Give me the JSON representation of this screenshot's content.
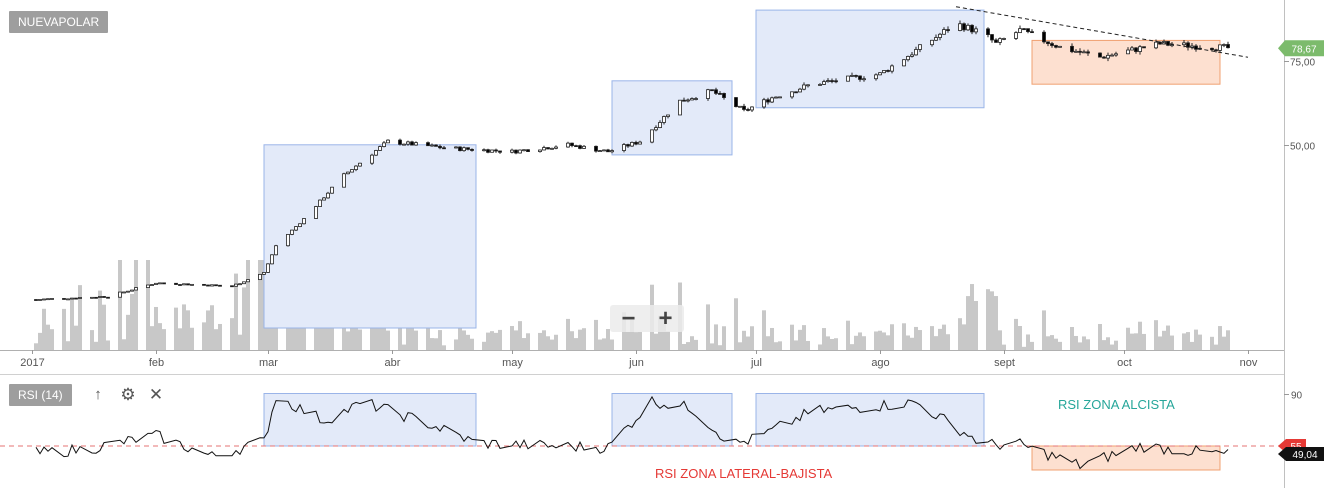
{
  "symbol_label": "NUEVAPOLAR",
  "rsi_label": "RSI (14)",
  "icons": {
    "arrow": "up-arrow-icon",
    "settings": "gear-icon",
    "close": "close-icon",
    "zoom_out": "minus-icon",
    "zoom_in": "plus-icon"
  },
  "zoom": {
    "out_glyph": "−",
    "in_glyph": "+"
  },
  "annotations": {
    "bull_zone": "RSI ZONA ALCISTA",
    "lateral_zone": "RSI ZONA LATERAL-BAJISTA",
    "bull_color": "#26a69a",
    "lateral_color": "#e53935"
  },
  "colors": {
    "up_candle": "#ffffff",
    "down_candle": "#000000",
    "volume": "#c8c8c8",
    "box_blue_fill": "#e3eaf9",
    "box_blue_stroke": "#9ab4e8",
    "box_orange_fill": "#fde0d0",
    "box_orange_stroke": "#f0a070",
    "last_price_badge": "#7cbb6c",
    "rsi_badge": "#e53935"
  },
  "chart_data": [
    {
      "type": "candlestick",
      "title": "NUEVAPOLAR",
      "x_range": [
        "2017-01-01",
        "2017-11-06"
      ],
      "x_tick_labels": [
        "2017",
        "feb",
        "mar",
        "abr",
        "may",
        "jun",
        "jul",
        "ago",
        "sept",
        "oct",
        "nov"
      ],
      "y_tick_labels": [
        "75,00",
        "50,00"
      ],
      "y_range": [
        0,
        90
      ],
      "last_price": "78,67",
      "last_price_value": 78.67,
      "price_path": [
        [
          "2017-01-01",
          4
        ],
        [
          "2017-01-20",
          5
        ],
        [
          "2017-02-01",
          9
        ],
        [
          "2017-02-20",
          8
        ],
        [
          "2017-02-28",
          12
        ],
        [
          "2017-03-03",
          20
        ],
        [
          "2017-03-10",
          28
        ],
        [
          "2017-03-20",
          41
        ],
        [
          "2017-03-31",
          51
        ],
        [
          "2017-04-15",
          49
        ],
        [
          "2017-05-01",
          48
        ],
        [
          "2017-05-15",
          50
        ],
        [
          "2017-05-25",
          48
        ],
        [
          "2017-06-02",
          51
        ],
        [
          "2017-06-12",
          63
        ],
        [
          "2017-06-20",
          66
        ],
        [
          "2017-06-28",
          60
        ],
        [
          "2017-07-05",
          64
        ],
        [
          "2017-07-15",
          68
        ],
        [
          "2017-08-01",
          71
        ],
        [
          "2017-08-10",
          78
        ],
        [
          "2017-08-20",
          86
        ],
        [
          "2017-08-27",
          83
        ],
        [
          "2017-08-30",
          80
        ],
        [
          "2017-09-05",
          84
        ],
        [
          "2017-09-15",
          79
        ],
        [
          "2017-09-25",
          76
        ],
        [
          "2017-10-10",
          80
        ],
        [
          "2017-10-28",
          78.7
        ]
      ],
      "trendline": [
        [
          "2017-08-20",
          91
        ],
        [
          "2017-11-01",
          76
        ]
      ],
      "highlight_boxes": [
        {
          "color": "blue",
          "x": [
            "2017-02-28",
            "2017-04-22"
          ],
          "y": [
            45,
            50
          ]
        },
        {
          "color": "blue",
          "x": [
            "2017-05-26",
            "2017-06-25"
          ],
          "y": [
            47,
            69
          ]
        },
        {
          "color": "blue",
          "x": [
            "2017-07-01",
            "2017-08-27"
          ],
          "y": [
            61,
            90
          ]
        },
        {
          "color": "orange",
          "x": [
            "2017-09-08",
            "2017-10-25"
          ],
          "y": [
            68,
            81
          ]
        }
      ],
      "volume": "histogram, peaks around early March, late May and late August"
    },
    {
      "type": "line",
      "title": "RSI (14)",
      "y_tick_labels": [
        "90"
      ],
      "y_range": [
        30,
        95
      ],
      "reference_line": 55,
      "reference_label": "55",
      "last_value_label": "49,04",
      "rsi_path": [
        [
          "2017-01-01",
          50
        ],
        [
          "2017-01-15",
          53
        ],
        [
          "2017-02-01",
          62
        ],
        [
          "2017-02-15",
          48
        ],
        [
          "2017-02-28",
          58
        ],
        [
          "2017-03-03",
          88
        ],
        [
          "2017-03-15",
          72
        ],
        [
          "2017-03-25",
          84
        ],
        [
          "2017-04-10",
          70
        ],
        [
          "2017-04-22",
          57
        ],
        [
          "2017-05-10",
          55
        ],
        [
          "2017-05-25",
          54
        ],
        [
          "2017-06-05",
          85
        ],
        [
          "2017-06-15",
          80
        ],
        [
          "2017-06-25",
          56
        ],
        [
          "2017-07-01",
          60
        ],
        [
          "2017-07-15",
          78
        ],
        [
          "2017-08-10",
          84
        ],
        [
          "2017-08-27",
          56
        ],
        [
          "2017-09-05",
          56
        ],
        [
          "2017-09-20",
          42
        ],
        [
          "2017-10-05",
          55
        ],
        [
          "2017-10-20",
          51
        ],
        [
          "2017-10-28",
          49.04
        ]
      ],
      "highlight_boxes": [
        {
          "color": "blue",
          "x": [
            "2017-02-28",
            "2017-04-22"
          ],
          "y": [
            55,
            90
          ]
        },
        {
          "color": "blue",
          "x": [
            "2017-05-26",
            "2017-06-25"
          ],
          "y": [
            55,
            90
          ]
        },
        {
          "color": "blue",
          "x": [
            "2017-07-01",
            "2017-08-27"
          ],
          "y": [
            55,
            90
          ]
        },
        {
          "color": "orange",
          "x": [
            "2017-09-08",
            "2017-10-25"
          ],
          "y": [
            39,
            55
          ]
        }
      ]
    }
  ]
}
